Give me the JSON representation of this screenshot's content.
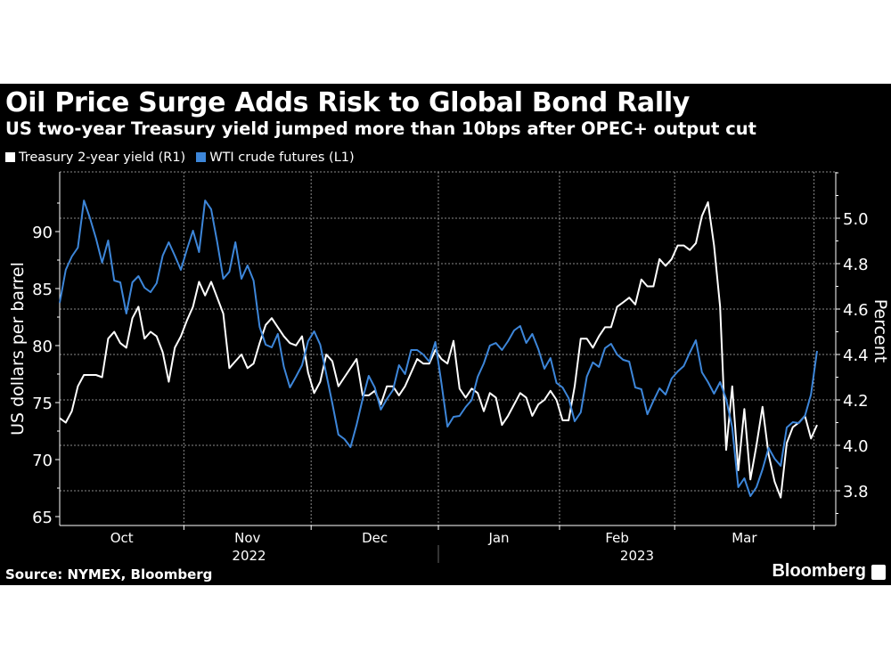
{
  "title": "Oil Price Surge Adds Risk to Global Bond Rally",
  "subtitle": "US two-year Treasury yield jumped more than 10bps after OPEC+ output cut",
  "source": "Source: NYMEX, Bloomberg",
  "brand": "Bloomberg",
  "colors": {
    "background": "#000000",
    "treasury": "#ffffff",
    "wti": "#3d86d9",
    "grid": "#8a8a8a"
  },
  "chart_data": {
    "type": "line",
    "title": "Oil Price Surge Adds Risk to Global Bond Rally",
    "subtitle": "US two-year Treasury yield jumped more than 10bps after OPEC+ output cut",
    "ylabel_left": "US dollars per barrel",
    "ylabel_right": "Percent",
    "ylim_left": [
      64,
      95
    ],
    "ylim_right": [
      3.63,
      5.2
    ],
    "yticks_left": [
      "65",
      "70",
      "75",
      "80",
      "85",
      "90"
    ],
    "yticks_right": [
      "3.8",
      "4.0",
      "4.2",
      "4.4",
      "4.6",
      "4.8",
      "5.0"
    ],
    "xtick_months": [
      "Oct",
      "Nov",
      "Dec",
      "Jan",
      "Feb",
      "Mar"
    ],
    "xtick_years": [
      "2022",
      "2023"
    ],
    "grid": true,
    "legend_placement": "top-left",
    "x": [
      "2022-10-03",
      "2022-10-04",
      "2022-10-05",
      "2022-10-06",
      "2022-10-07",
      "2022-10-10",
      "2022-10-11",
      "2022-10-12",
      "2022-10-13",
      "2022-10-14",
      "2022-10-17",
      "2022-10-18",
      "2022-10-19",
      "2022-10-20",
      "2022-10-21",
      "2022-10-24",
      "2022-10-25",
      "2022-10-26",
      "2022-10-27",
      "2022-10-28",
      "2022-10-31",
      "2022-11-01",
      "2022-11-02",
      "2022-11-03",
      "2022-11-04",
      "2022-11-07",
      "2022-11-08",
      "2022-11-09",
      "2022-11-10",
      "2022-11-11",
      "2022-11-14",
      "2022-11-15",
      "2022-11-16",
      "2022-11-17",
      "2022-11-18",
      "2022-11-21",
      "2022-11-22",
      "2022-11-23",
      "2022-11-25",
      "2022-11-28",
      "2022-11-29",
      "2022-11-30",
      "2022-12-01",
      "2022-12-02",
      "2022-12-05",
      "2022-12-06",
      "2022-12-07",
      "2022-12-08",
      "2022-12-09",
      "2022-12-12",
      "2022-12-13",
      "2022-12-14",
      "2022-12-15",
      "2022-12-16",
      "2022-12-19",
      "2022-12-20",
      "2022-12-21",
      "2022-12-22",
      "2022-12-23",
      "2022-12-27",
      "2022-12-28",
      "2022-12-29",
      "2022-12-30",
      "2023-01-03",
      "2023-01-04",
      "2023-01-05",
      "2023-01-06",
      "2023-01-09",
      "2023-01-10",
      "2023-01-11",
      "2023-01-12",
      "2023-01-13",
      "2023-01-17",
      "2023-01-18",
      "2023-01-19",
      "2023-01-20",
      "2023-01-23",
      "2023-01-24",
      "2023-01-25",
      "2023-01-26",
      "2023-01-27",
      "2023-01-30",
      "2023-01-31",
      "2023-02-01",
      "2023-02-02",
      "2023-02-03",
      "2023-02-06",
      "2023-02-07",
      "2023-02-08",
      "2023-02-09",
      "2023-02-10",
      "2023-02-13",
      "2023-02-14",
      "2023-02-15",
      "2023-02-16",
      "2023-02-17",
      "2023-02-21",
      "2023-02-22",
      "2023-02-23",
      "2023-02-24",
      "2023-02-27",
      "2023-02-28",
      "2023-03-01",
      "2023-03-02",
      "2023-03-03",
      "2023-03-06",
      "2023-03-07",
      "2023-03-08",
      "2023-03-09",
      "2023-03-10",
      "2023-03-13",
      "2023-03-14",
      "2023-03-15",
      "2023-03-16",
      "2023-03-17",
      "2023-03-20",
      "2023-03-21",
      "2023-03-22",
      "2023-03-23",
      "2023-03-24",
      "2023-03-27",
      "2023-03-28",
      "2023-03-29",
      "2023-03-30",
      "2023-03-31",
      "2023-04-03"
    ],
    "series": [
      {
        "name": "Treasury 2-year yield (R1)",
        "axis": "right",
        "color": "#ffffff",
        "values": [
          4.12,
          4.1,
          4.15,
          4.26,
          4.31,
          4.31,
          4.31,
          4.3,
          4.47,
          4.5,
          4.45,
          4.43,
          4.56,
          4.61,
          4.47,
          4.5,
          4.48,
          4.41,
          4.28,
          4.43,
          4.48,
          4.55,
          4.61,
          4.72,
          4.66,
          4.72,
          4.65,
          4.58,
          4.34,
          4.37,
          4.4,
          4.34,
          4.36,
          4.45,
          4.53,
          4.56,
          4.52,
          4.48,
          4.45,
          4.44,
          4.48,
          4.32,
          4.23,
          4.28,
          4.4,
          4.37,
          4.26,
          4.3,
          4.34,
          4.38,
          4.22,
          4.22,
          4.24,
          4.18,
          4.26,
          4.26,
          4.22,
          4.26,
          4.32,
          4.38,
          4.36,
          4.36,
          4.42,
          4.38,
          4.36,
          4.46,
          4.25,
          4.21,
          4.25,
          4.23,
          4.15,
          4.23,
          4.21,
          4.09,
          4.13,
          4.18,
          4.23,
          4.21,
          4.13,
          4.18,
          4.2,
          4.24,
          4.2,
          4.11,
          4.11,
          4.26,
          4.47,
          4.47,
          4.43,
          4.48,
          4.52,
          4.52,
          4.61,
          4.63,
          4.65,
          4.62,
          4.73,
          4.7,
          4.7,
          4.82,
          4.79,
          4.82,
          4.88,
          4.88,
          4.86,
          4.89,
          5.01,
          5.07,
          4.88,
          4.61,
          3.98,
          4.26,
          3.89,
          4.16,
          3.85,
          4.0,
          4.17,
          3.96,
          3.84,
          3.77,
          4.01,
          4.08,
          4.1,
          4.13,
          4.03,
          4.09
        ]
      },
      {
        "name": "WTI crude futures (L1)",
        "axis": "left",
        "color": "#3d86d9",
        "values": [
          83.75,
          86.64,
          87.81,
          88.59,
          92.73,
          91.17,
          89.38,
          87.27,
          89.22,
          85.7,
          85.55,
          82.81,
          85.55,
          86.09,
          85.08,
          84.69,
          85.47,
          87.89,
          89.06,
          87.89,
          86.64,
          88.44,
          90.08,
          88.2,
          92.73,
          91.95,
          89.06,
          85.86,
          86.48,
          89.06,
          85.86,
          87.03,
          85.7,
          81.64,
          80.08,
          79.84,
          81.02,
          78.13,
          76.33,
          77.27,
          78.28,
          80.39,
          81.25,
          80.08,
          77.5,
          74.92,
          72.19,
          71.8,
          71.09,
          73.05,
          75.31,
          77.34,
          76.33,
          74.38,
          75.31,
          76.09,
          78.28,
          77.5,
          79.61,
          79.61,
          79.22,
          78.59,
          80.31,
          76.72,
          72.89,
          73.75,
          73.83,
          74.61,
          75.23,
          77.27,
          78.44,
          80.0,
          80.23,
          79.61,
          80.39,
          81.33,
          81.72,
          80.23,
          81.02,
          79.69,
          77.97,
          78.91,
          76.72,
          76.33,
          75.39,
          73.36,
          74.14,
          77.27,
          78.52,
          78.13,
          79.77,
          80.16,
          79.22,
          78.75,
          78.59,
          76.33,
          76.17,
          73.98,
          75.16,
          76.25,
          75.7,
          77.11,
          77.73,
          78.2,
          79.38,
          80.47,
          77.66,
          76.8,
          75.78,
          76.8,
          75.31,
          72.81,
          67.58,
          68.36,
          66.8,
          67.58,
          69.14,
          71.02,
          70.08,
          69.45,
          72.81,
          73.28,
          73.2,
          73.83,
          75.7,
          79.53
        ]
      }
    ]
  }
}
